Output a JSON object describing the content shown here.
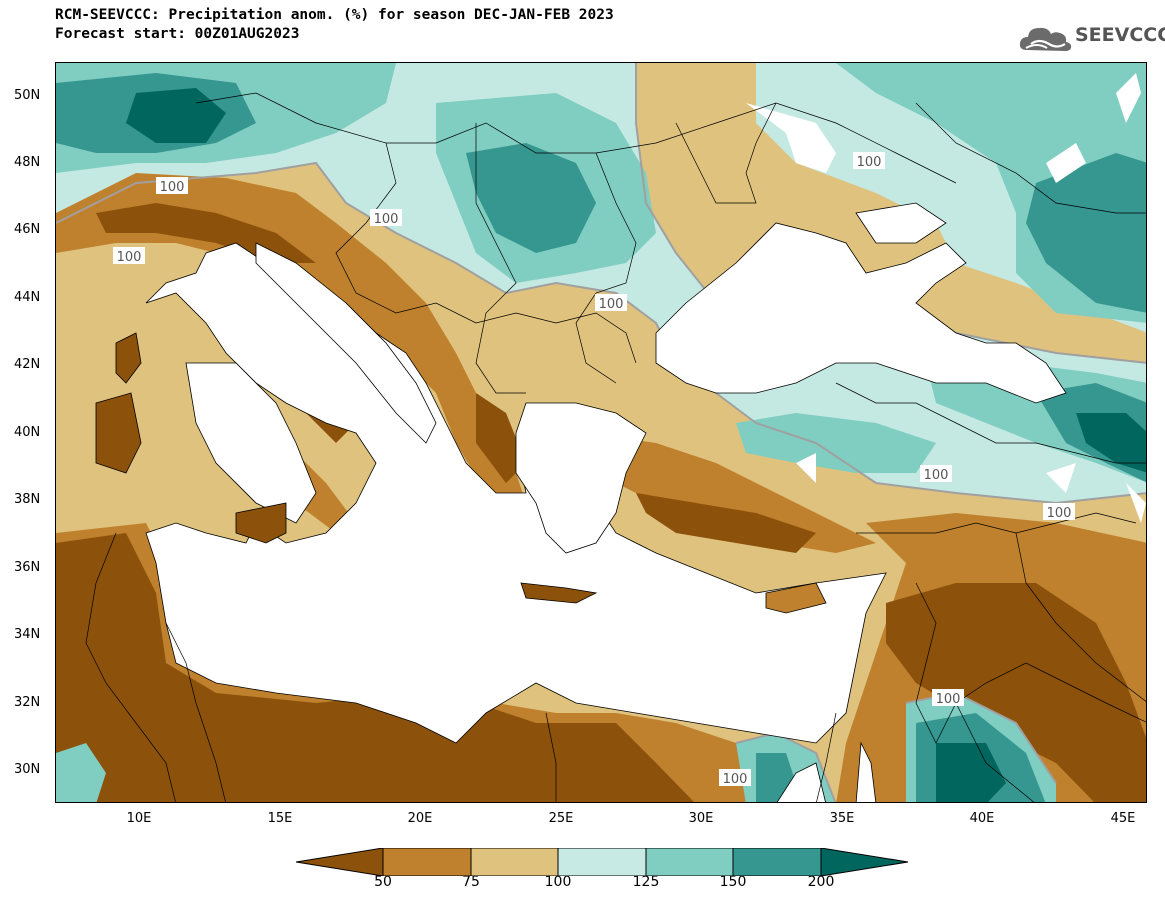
{
  "header": {
    "title_line1": "RCM-SEEVCCC: Precipitation anom. (%) for season DEC-JAN-FEB 2023",
    "title_line2": "Forecast start: 00Z01AUG2023"
  },
  "logo": {
    "text": "SEEVCCC",
    "icon": "cloud-icon"
  },
  "map": {
    "lat_labels": [
      "50N",
      "48N",
      "46N",
      "44N",
      "42N",
      "40N",
      "38N",
      "36N",
      "34N",
      "32N",
      "30N"
    ],
    "lon_labels": [
      "10E",
      "15E",
      "20E",
      "25E",
      "30E",
      "35E",
      "40E",
      "45E"
    ],
    "contour_labels": [
      "100",
      "100",
      "100",
      "100",
      "100",
      "100",
      "100",
      "100",
      "100",
      "100"
    ],
    "colors": {
      "below_50": "#8c510a",
      "50_75": "#bf812d",
      "75_100": "#dfc27d",
      "100_125": "#c7eae5",
      "125_150": "#80cdc1",
      "150_200": "#35978f",
      "above_200": "#01665e",
      "sea": "#ffffff",
      "contour": "#a0a0a0"
    }
  },
  "colorbar": {
    "tick_labels": [
      "50",
      "75",
      "100",
      "125",
      "150",
      "200"
    ],
    "colors": [
      "#8c510a",
      "#bf812d",
      "#dfc27d",
      "#c7eae5",
      "#80cdc1",
      "#35978f",
      "#01665e"
    ]
  }
}
